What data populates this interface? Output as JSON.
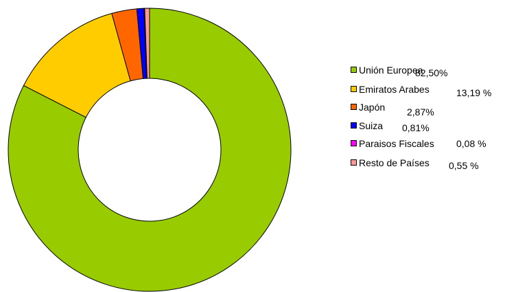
{
  "chart_data": {
    "type": "pie",
    "donut": true,
    "title": "",
    "legend_position": "right",
    "series": [
      {
        "name": "Unión Europea",
        "value": 82.5,
        "value_label": "82,50%",
        "color": "#99cc00"
      },
      {
        "name": "Emiratos Arabes",
        "value": 13.19,
        "value_label": "13,19 %",
        "color": "#ffcc00"
      },
      {
        "name": "Japón",
        "value": 2.87,
        "value_label": "2,87%",
        "color": "#ff6600"
      },
      {
        "name": "Suiza",
        "value": 0.81,
        "value_label": "0,81%",
        "color": "#0000ff"
      },
      {
        "name": "Paraisos Fiscales",
        "value": 0.08,
        "value_label": "0,08 %",
        "color": "#ff00ff"
      },
      {
        "name": "Resto de Países",
        "value": 0.55,
        "value_label": "0,55 %",
        "color": "#ff9999"
      }
    ]
  }
}
